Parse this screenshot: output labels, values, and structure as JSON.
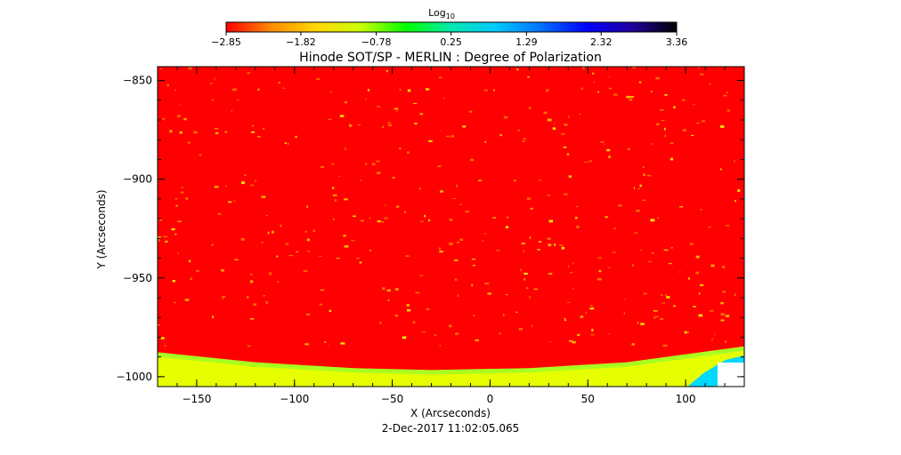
{
  "chart_data": {
    "type": "heatmap",
    "title": "Hinode SOT/SP - MERLIN : Degree of Polarization",
    "timestamp": "2-Dec-2017 11:02:05.065",
    "xlabel": "X (Arcseconds)",
    "ylabel": "Y (Arcseconds)",
    "xlim": [
      -170,
      130
    ],
    "ylim": [
      -1005,
      -843
    ],
    "x_ticks": [
      -150,
      -100,
      -50,
      0,
      50,
      100
    ],
    "x_tick_labels": [
      "−150",
      "−100",
      "−50",
      "0",
      "50",
      "100"
    ],
    "y_ticks": [
      -850,
      -900,
      -950,
      -1000
    ],
    "y_tick_labels": [
      "−850",
      "−900",
      "−950",
      "−1000"
    ],
    "colorbar": {
      "label_base": "Log",
      "label_sub": "10",
      "range": [
        -2.85,
        3.36
      ],
      "tick_values": [
        -2.85,
        -1.82,
        -0.78,
        0.25,
        1.29,
        2.32,
        3.36
      ],
      "tick_labels": [
        "−2.85",
        "−1.82",
        "−0.78",
        "0.25",
        "1.29",
        "2.32",
        "3.36"
      ],
      "colors": [
        "#ff0000",
        "#ff8c00",
        "#ffd700",
        "#c8ff00",
        "#00ff00",
        "#00e8b0",
        "#00c8ff",
        "#0070ff",
        "#0000ff",
        "#2000a0",
        "#000000"
      ]
    },
    "limb_curve": [
      {
        "x": -170,
        "y": -989
      },
      {
        "x": -120,
        "y": -994
      },
      {
        "x": -70,
        "y": -997
      },
      {
        "x": -30,
        "y": -998
      },
      {
        "x": 20,
        "y": -997
      },
      {
        "x": 70,
        "y": -994
      },
      {
        "x": 130,
        "y": -986
      }
    ],
    "colors": {
      "background_field": "#ff0000",
      "limb_band": "#e6ff00",
      "limb_outer": "#a8ff20",
      "edge_high": "#00d8ff"
    }
  }
}
